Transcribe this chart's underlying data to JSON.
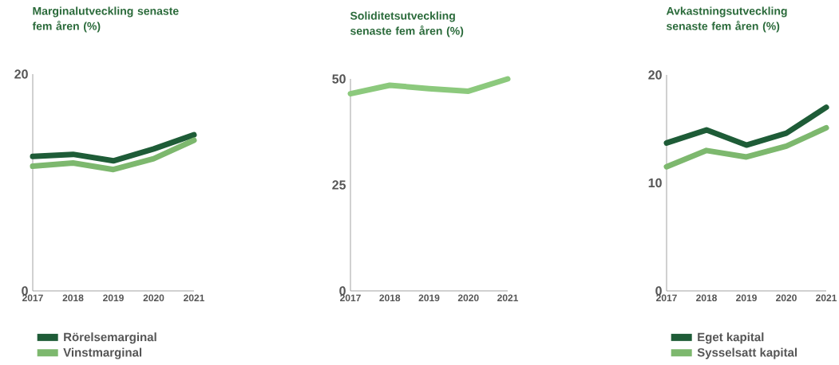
{
  "chart_data": [
    {
      "type": "line",
      "title": "Marginalutveckling senaste fem åren (%)",
      "categories": [
        "2017",
        "2018",
        "2019",
        "2020",
        "2021"
      ],
      "ylim": [
        0,
        20
      ],
      "yticks": [
        0,
        20
      ],
      "legend": "bottom",
      "grid": false,
      "series": [
        {
          "name": "Rörelsemarginal",
          "color": "#1e5c37",
          "values": [
            12.4,
            12.6,
            12.0,
            13.1,
            14.4
          ]
        },
        {
          "name": "Vinstmarginal",
          "color": "#7db86e",
          "values": [
            11.5,
            11.8,
            11.2,
            12.2,
            13.9
          ]
        }
      ]
    },
    {
      "type": "line",
      "title": "Soliditetsutveckling senaste fem åren (%)",
      "categories": [
        "2017",
        "2018",
        "2019",
        "2020",
        "2021"
      ],
      "ylim": [
        0,
        50
      ],
      "yticks": [
        0,
        25,
        50
      ],
      "grid": false,
      "series": [
        {
          "color": "#8cc97d",
          "values": [
            46.5,
            48.5,
            47.7,
            47.1,
            50
          ]
        }
      ]
    },
    {
      "type": "line",
      "title": "Avkastningsutveckling senaste fem åren (%)",
      "categories": [
        "2017",
        "2018",
        "2019",
        "2020",
        "2021"
      ],
      "ylim": [
        0,
        20
      ],
      "yticks": [
        0,
        10,
        20
      ],
      "legend": "bottom",
      "grid": false,
      "series": [
        {
          "name": "Eget kapital",
          "color": "#1e5c37",
          "values": [
            13.7,
            14.9,
            13.5,
            14.6,
            17.0
          ]
        },
        {
          "name": "Sysselsatt kapital",
          "color": "#7db86e",
          "values": [
            11.5,
            13.0,
            12.4,
            13.4,
            15.1
          ]
        }
      ]
    }
  ]
}
